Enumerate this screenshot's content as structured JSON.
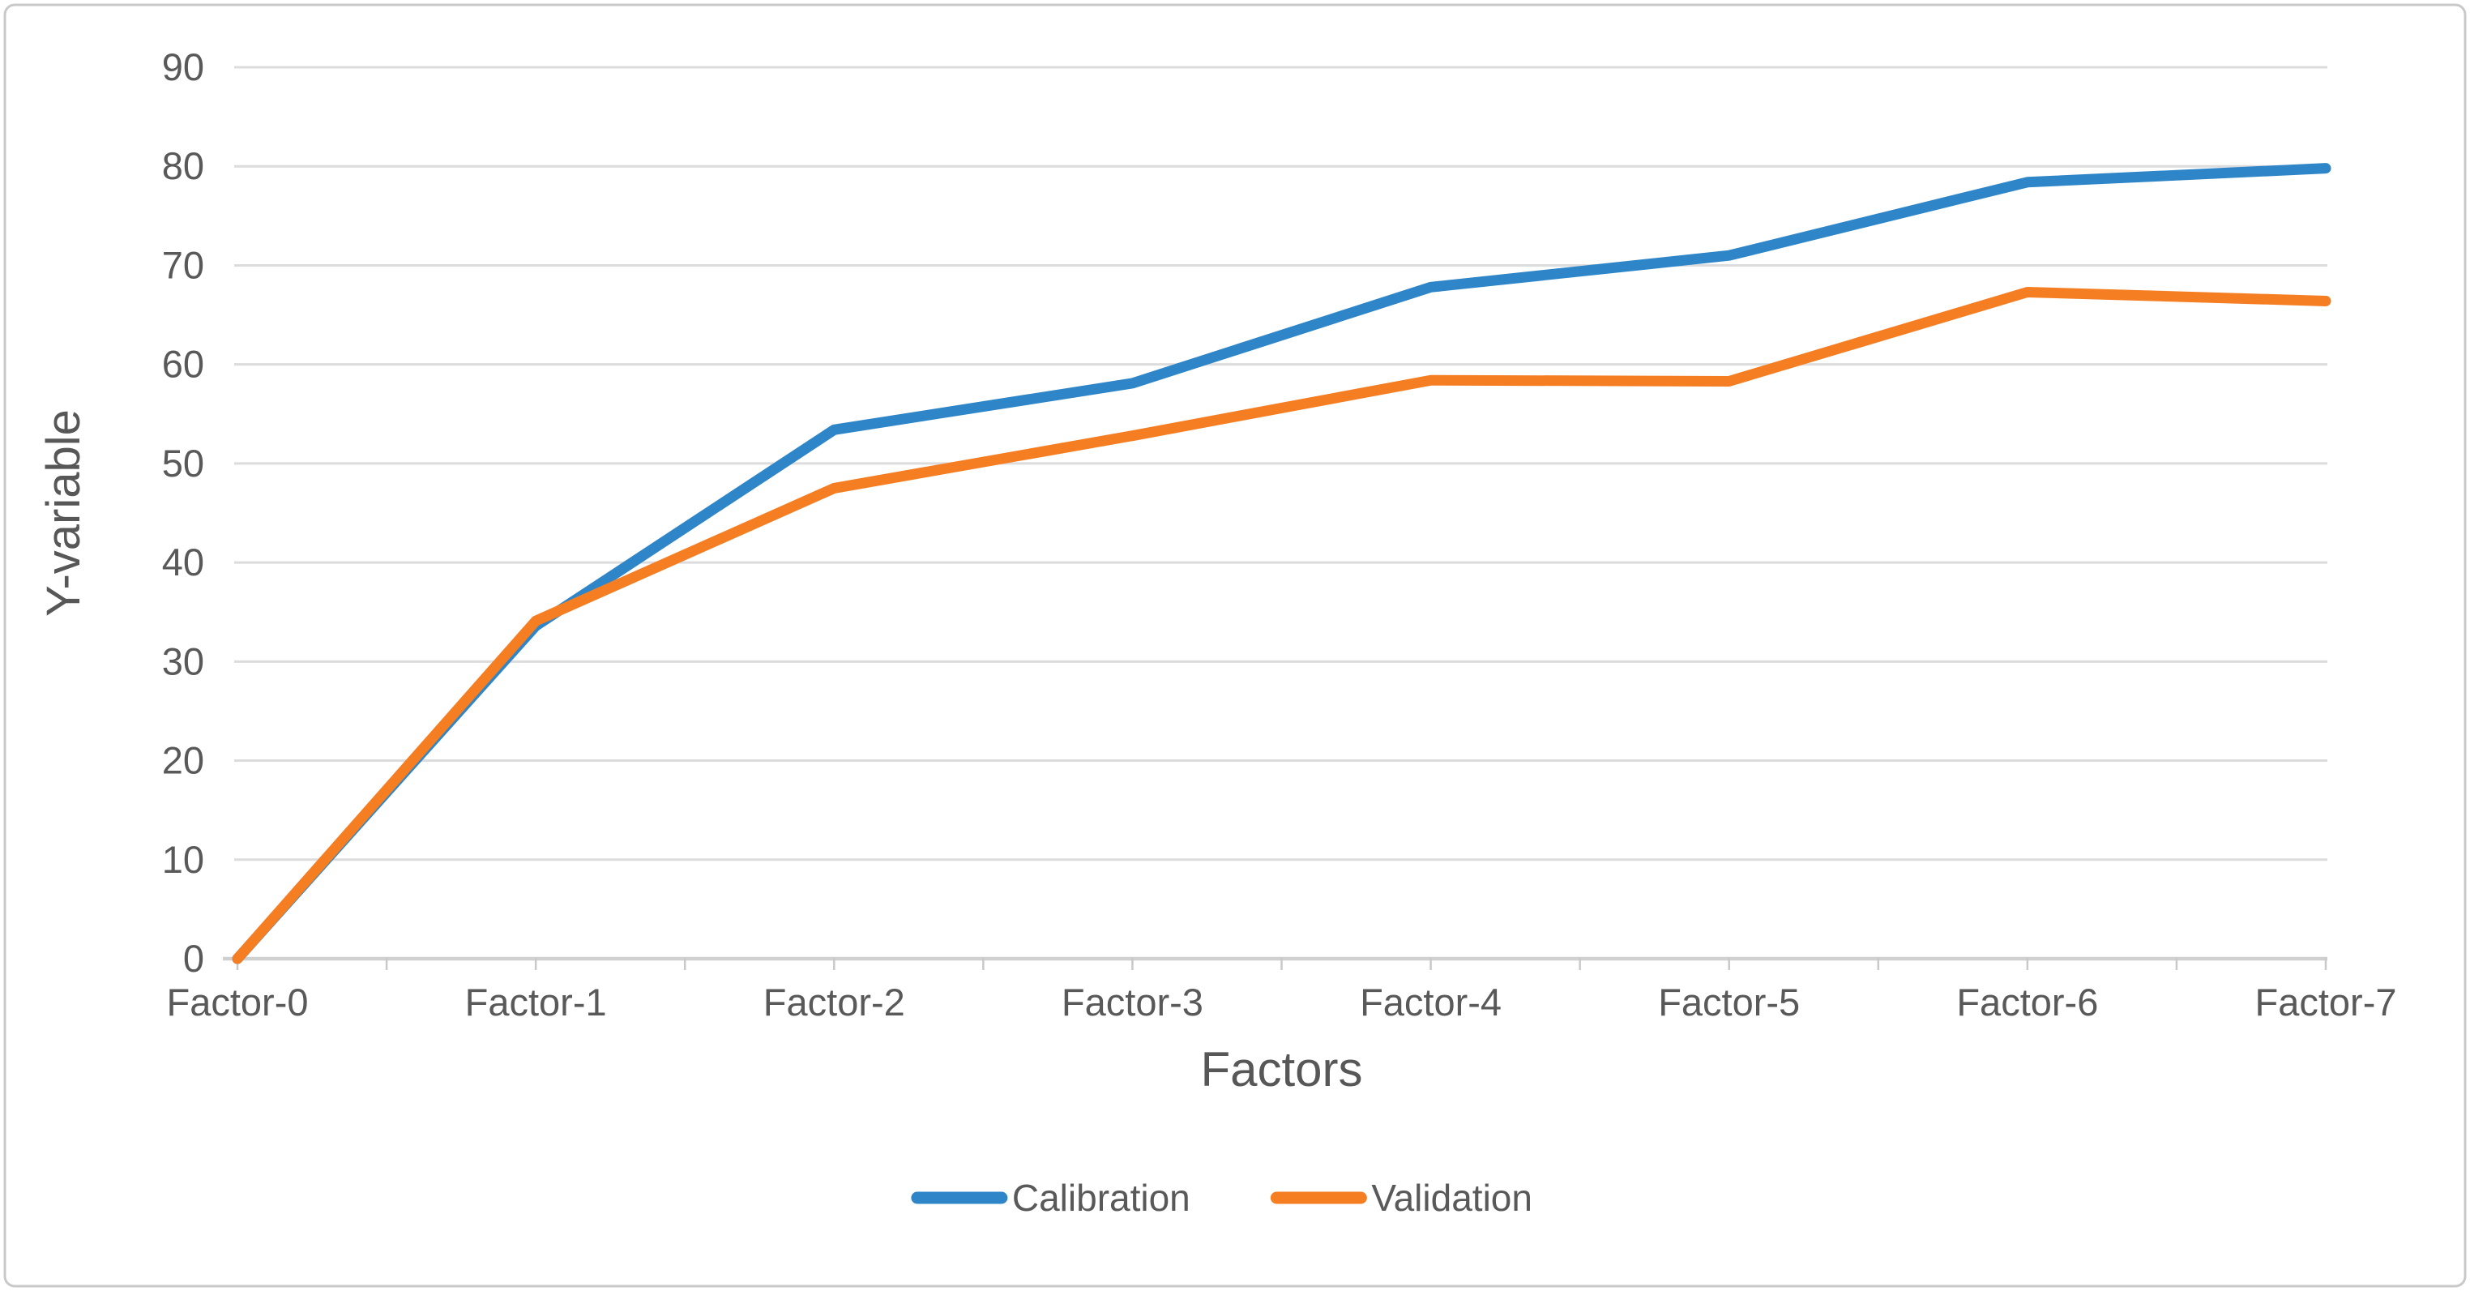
{
  "figure": {
    "background_color": "#ffffff",
    "border_color": "#c9c9c9"
  },
  "chart_data": {
    "type": "line",
    "title": "",
    "xlabel": "Factors",
    "ylabel": "Y-variable",
    "categories": [
      "Factor-0",
      "Factor-1",
      "Factor-2",
      "Factor-3",
      "Factor-4",
      "Factor-5",
      "Factor-6",
      "Factor-7"
    ],
    "series": [
      {
        "name": "Calibration",
        "color": "#2e86c8",
        "values": [
          0,
          33.6,
          53.4,
          58.1,
          67.8,
          71.0,
          78.4,
          79.8
        ]
      },
      {
        "name": "Validation",
        "color": "#f57e23",
        "values": [
          0,
          34.1,
          47.5,
          52.8,
          58.4,
          58.3,
          67.3,
          66.4
        ]
      }
    ],
    "ylim": [
      0,
      90
    ],
    "ytick_step": 10,
    "ytick_labels": [
      "0",
      "10",
      "20",
      "30",
      "40",
      "50",
      "60",
      "70",
      "80",
      "90"
    ],
    "grid": true,
    "legend_position": "bottom-center",
    "legend_entries": [
      "Calibration",
      "Validation"
    ],
    "gridline_color": "#dcdcdc",
    "axis_line_color": "#d0d0d0",
    "tick_mark_color": "#c9c9c9",
    "tick_label_color": "#595959",
    "axis_title_color": "#575757",
    "legend_text_color": "#595959"
  }
}
